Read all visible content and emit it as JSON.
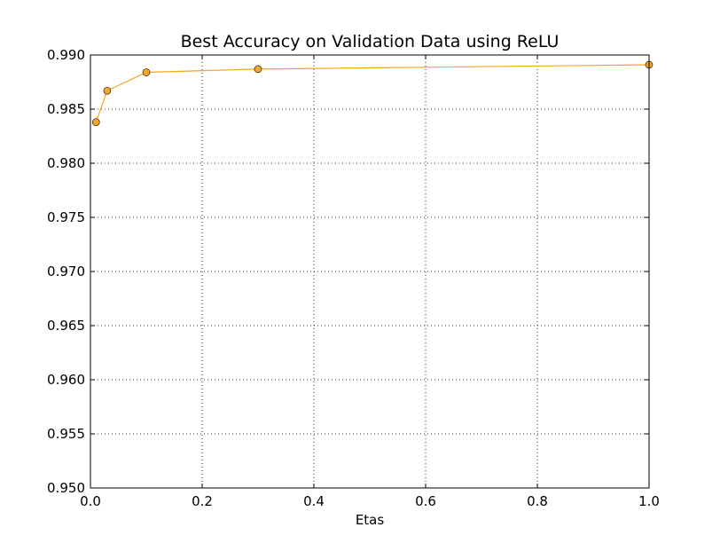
{
  "chart_data": {
    "type": "line",
    "title": "Best Accuracy on Validation Data using ReLU",
    "xlabel": "Etas",
    "ylabel": "",
    "xlim": [
      0.0,
      1.0
    ],
    "ylim": [
      0.95,
      0.99
    ],
    "xticks": [
      "0.0",
      "0.2",
      "0.4",
      "0.6",
      "0.8",
      "1.0"
    ],
    "yticks": [
      "0.950",
      "0.955",
      "0.960",
      "0.965",
      "0.970",
      "0.975",
      "0.980",
      "0.985",
      "0.990"
    ],
    "grid": true,
    "series": [
      {
        "x": [
          0.01,
          0.03,
          0.1,
          0.3,
          1.0
        ],
        "y": [
          0.9838,
          0.9867,
          0.9884,
          0.9887,
          0.9891
        ],
        "color": "#f5a623",
        "marker": "circle"
      }
    ]
  }
}
